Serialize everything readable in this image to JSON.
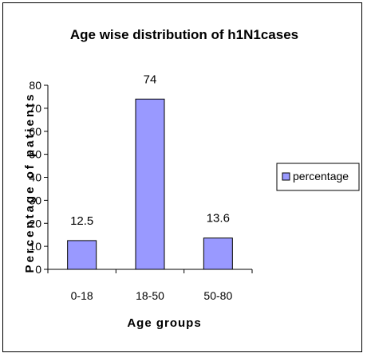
{
  "chart_data": {
    "type": "bar",
    "title": "Age wise distribution of h1N1cases",
    "xlabel": "Age groups",
    "ylabel": "Percentage of patients",
    "categories": [
      "0-18",
      "18-50",
      "50-80"
    ],
    "series": [
      {
        "name": "percentage",
        "values": [
          12.5,
          74,
          13.6
        ]
      }
    ],
    "data_labels": [
      "12.5",
      "74",
      "13.6"
    ],
    "ylim": [
      0,
      80
    ],
    "yticks": [
      0,
      10,
      20,
      30,
      40,
      50,
      60,
      70,
      80
    ],
    "grid": false,
    "legend_position": "right",
    "colors": {
      "bar_fill": "#9999ff",
      "bar_stroke": "#000000",
      "axis": "#000000"
    }
  }
}
